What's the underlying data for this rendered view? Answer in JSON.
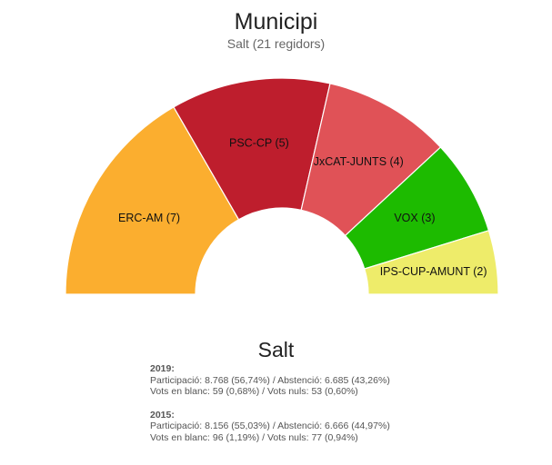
{
  "chart_data": {
    "type": "pie",
    "variant": "semicircle",
    "title": "Municipi",
    "subtitle": "Salt (21 regidors)",
    "total_seats": 21,
    "slices": [
      {
        "name": "ERC-AM",
        "seats": 7,
        "label": "ERC-AM (7)",
        "color": "#FBAE2F"
      },
      {
        "name": "PSC-CP",
        "seats": 5,
        "label": "PSC-CP (5)",
        "color": "#BE1E2D"
      },
      {
        "name": "JxCAT-JUNTS",
        "seats": 4,
        "label": "JxCAT-JUNTS (4)",
        "color": "#E05257"
      },
      {
        "name": "VOX",
        "seats": 3,
        "label": "VOX (3)",
        "color": "#1DBB00"
      },
      {
        "name": "IPS-CUP-AMUNT",
        "seats": 2,
        "label": "IPS-CUP-AMUNT (2)",
        "color": "#EEEC6A"
      }
    ]
  },
  "municipality": "Salt",
  "results": [
    {
      "year": "2019:",
      "line1": "Participació: 8.768 (56,74%) / Abstenció: 6.685 (43,26%)",
      "line2": "Vots en blanc: 59 (0,68%) / Vots nuls: 53 (0,60%)"
    },
    {
      "year": "2015:",
      "line1": "Participació: 8.156 (55,03%) / Abstenció: 6.666 (44,97%)",
      "line2": "Vots en blanc: 96 (1,19%) / Vots nuls: 77 (0,94%)"
    }
  ]
}
